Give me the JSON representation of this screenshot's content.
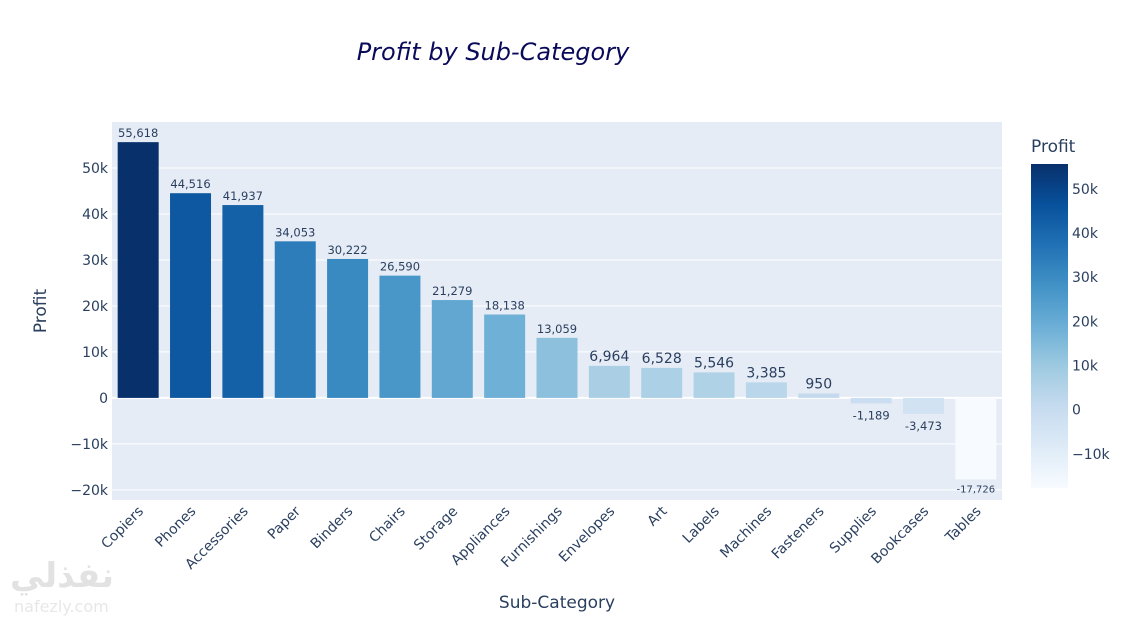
{
  "chart_data": {
    "type": "bar",
    "title": "Profit by Sub-Category",
    "xlabel": "Sub-Category",
    "ylabel": "Profit",
    "categories": [
      "Copiers",
      "Phones",
      "Accessories",
      "Paper",
      "Binders",
      "Chairs",
      "Storage",
      "Appliances",
      "Furnishings",
      "Envelopes",
      "Art",
      "Labels",
      "Machines",
      "Fasteners",
      "Supplies",
      "Bookcases",
      "Tables"
    ],
    "values": [
      55618,
      44516,
      41937,
      34053,
      30222,
      26590,
      21279,
      18138,
      13059,
      6964,
      6528,
      5546,
      3385,
      950,
      -1189,
      -3473,
      -17726
    ],
    "data_labels": [
      "55,618",
      "44,516",
      "41,937",
      "34,053",
      "30,222",
      "26,590",
      "21,279",
      "18,138",
      "13,059",
      "6,964",
      "6,528",
      "5,546",
      "3,385",
      "950",
      "-1,189",
      "-3,473",
      "-17,726"
    ],
    "ylim": [
      -22200,
      60000
    ],
    "yticks": [
      -20000,
      -10000,
      0,
      10000,
      20000,
      30000,
      40000,
      50000
    ],
    "ytick_labels": [
      "−20k",
      "−10k",
      "0",
      "10k",
      "20k",
      "30k",
      "40k",
      "50k"
    ],
    "grid": true,
    "colorbar": {
      "title": "Profit",
      "range": [
        -17726,
        55618
      ],
      "ticks": [
        -10000,
        0,
        10000,
        20000,
        30000,
        40000,
        50000
      ],
      "tick_labels": [
        "−10k",
        "0",
        "10k",
        "20k",
        "30k",
        "40k",
        "50k"
      ],
      "colorscale": [
        "#f7fbff",
        "#deebf7",
        "#c6dbef",
        "#9ecae1",
        "#6baed6",
        "#4292c6",
        "#2171b5",
        "#08519c",
        "#08306b"
      ]
    },
    "colors": {
      "plot_bg": "#e5ecf6",
      "title": "#0a0a5a"
    }
  },
  "watermark": {
    "arabic": "نفذلي",
    "latin": "nafezly.com"
  }
}
